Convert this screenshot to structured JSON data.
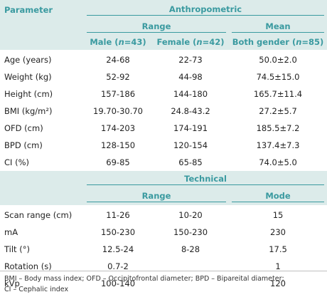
{
  "table": {
    "header": {
      "parameter": "Parameter",
      "anthropometric": "Anthropometric",
      "range": "Range",
      "mean": "Mean",
      "male_pre": "Male (",
      "male_post": "=43)",
      "female_pre": "Female (",
      "female_post": "=42)",
      "both_pre": "Both gender (",
      "both_post": "=85)",
      "n_symbol": "n",
      "technical": "Technical",
      "mode": "Mode"
    },
    "anthropometric_rows": [
      {
        "parameter": "Age (years)",
        "male": "24-68",
        "female": "22-73",
        "mean": "50.0±2.0"
      },
      {
        "parameter": "Weight (kg)",
        "male": "52-92",
        "female": "44-98",
        "mean": "74.5±15.0"
      },
      {
        "parameter": "Height (cm)",
        "male": "157-186",
        "female": "144-180",
        "mean": "165.7±11.4"
      },
      {
        "parameter": "BMI (kg/m²)",
        "male": "19.70-30.70",
        "female": "24.8-43.2",
        "mean": "27.2±5.7"
      },
      {
        "parameter": "OFD (cm)",
        "male": "174-203",
        "female": "174-191",
        "mean": "185.5±7.2"
      },
      {
        "parameter": "BPD (cm)",
        "male": "128-150",
        "female": "120-154",
        "mean": "137.4±7.3"
      },
      {
        "parameter": "CI (%)",
        "male": "69-85",
        "female": "65-85",
        "mean": "74.0±5.0"
      }
    ],
    "technical_rows": [
      {
        "parameter": "Scan range (cm)",
        "range_a": "11-26",
        "range_b": "10-20",
        "mode": "15"
      },
      {
        "parameter": "mA",
        "range_a": "150-230",
        "range_b": "150-230",
        "mode": "230"
      },
      {
        "parameter": "Tilt (°)",
        "range_a": "12.5-24",
        "range_b": "8-28",
        "mode": "17.5"
      },
      {
        "parameter": "Rotation (s)",
        "range_a": "0.7-2",
        "range_b": "",
        "mode": "1"
      },
      {
        "parameter": "kVp",
        "range_a": "100-140",
        "range_b": "",
        "mode": "120"
      }
    ],
    "colors": {
      "header_text": "#3a9aa0",
      "header_band": "#dcebea"
    }
  },
  "footnote": {
    "line1": "BMI – Body mass index; OFD – Occipitofrontal diameter; BPD – Bipareital diameter;",
    "line2": "CI – Cephalic index"
  }
}
